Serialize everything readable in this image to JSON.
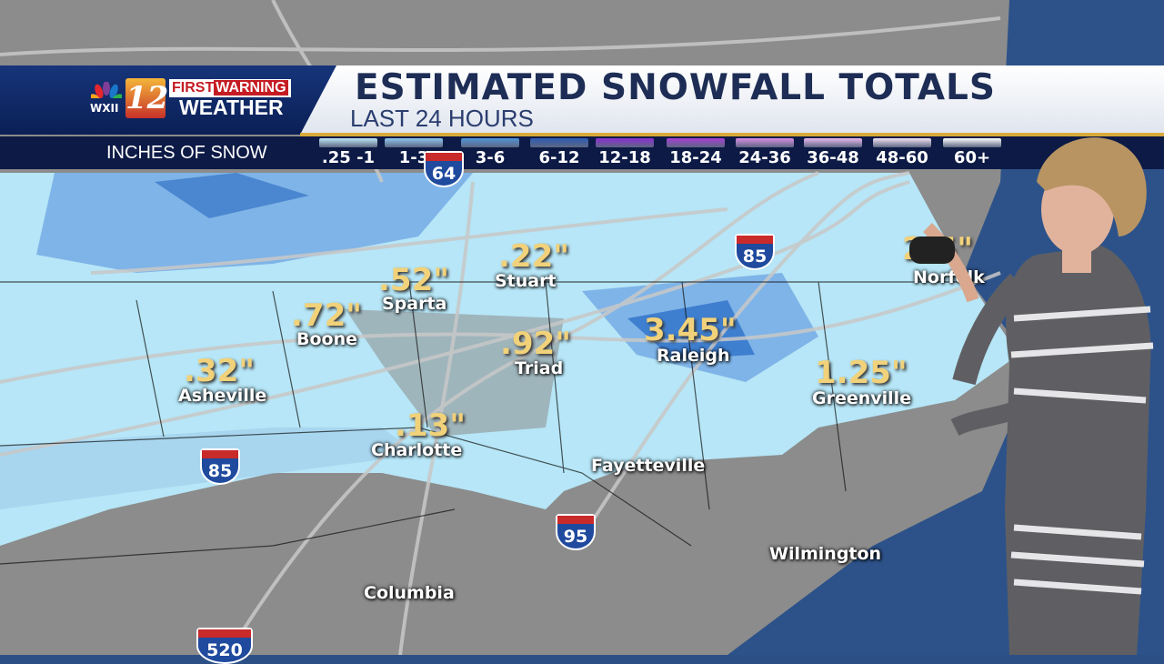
{
  "header": {
    "title": "ESTIMATED SNOWFALL TOTALS",
    "subtitle": "LAST 24 HOURS"
  },
  "branding": {
    "station": "WXII",
    "channel": "12",
    "first": "FIRST",
    "warning": "WARNING",
    "weather": "WEATHER"
  },
  "legend": {
    "label": "INCHES OF SNOW",
    "items": [
      {
        "label": ".25 -1",
        "color": "#bfe9f5"
      },
      {
        "label": "1-3",
        "color": "#8fc7ee"
      },
      {
        "label": "3-6",
        "color": "#4f94d8"
      },
      {
        "label": "6-12",
        "color": "#2d5bb2"
      },
      {
        "label": "12-18",
        "color": "#8a2fd0"
      },
      {
        "label": "18-24",
        "color": "#a63fd6"
      },
      {
        "label": "24-36",
        "color": "#d98ee6"
      },
      {
        "label": "36-48",
        "color": "#eab9ef"
      },
      {
        "label": "48-60",
        "color": "#f4e4f4"
      },
      {
        "label": "60+",
        "color": "#ffffff"
      }
    ]
  },
  "totals": [
    {
      "amount": ".22\"",
      "city": "Stuart"
    },
    {
      "amount": ".52\"",
      "city": "Sparta"
    },
    {
      "amount": ".72\"",
      "city": "Boone"
    },
    {
      "amount": ".92\"",
      "city": "Triad"
    },
    {
      "amount": "3.45\"",
      "city": "Raleigh"
    },
    {
      "amount": ".32\"",
      "city": "Asheville"
    },
    {
      "amount": "1.25\"",
      "city": "Greenville"
    },
    {
      "amount": ".13\"",
      "city": "Charlotte"
    },
    {
      "amount": "2.5\"",
      "city": "Norfolk"
    }
  ],
  "cities": [
    "Fayetteville",
    "Wilmington",
    "Columbia"
  ],
  "interstates": [
    "64",
    "85",
    "85",
    "95",
    "520"
  ]
}
